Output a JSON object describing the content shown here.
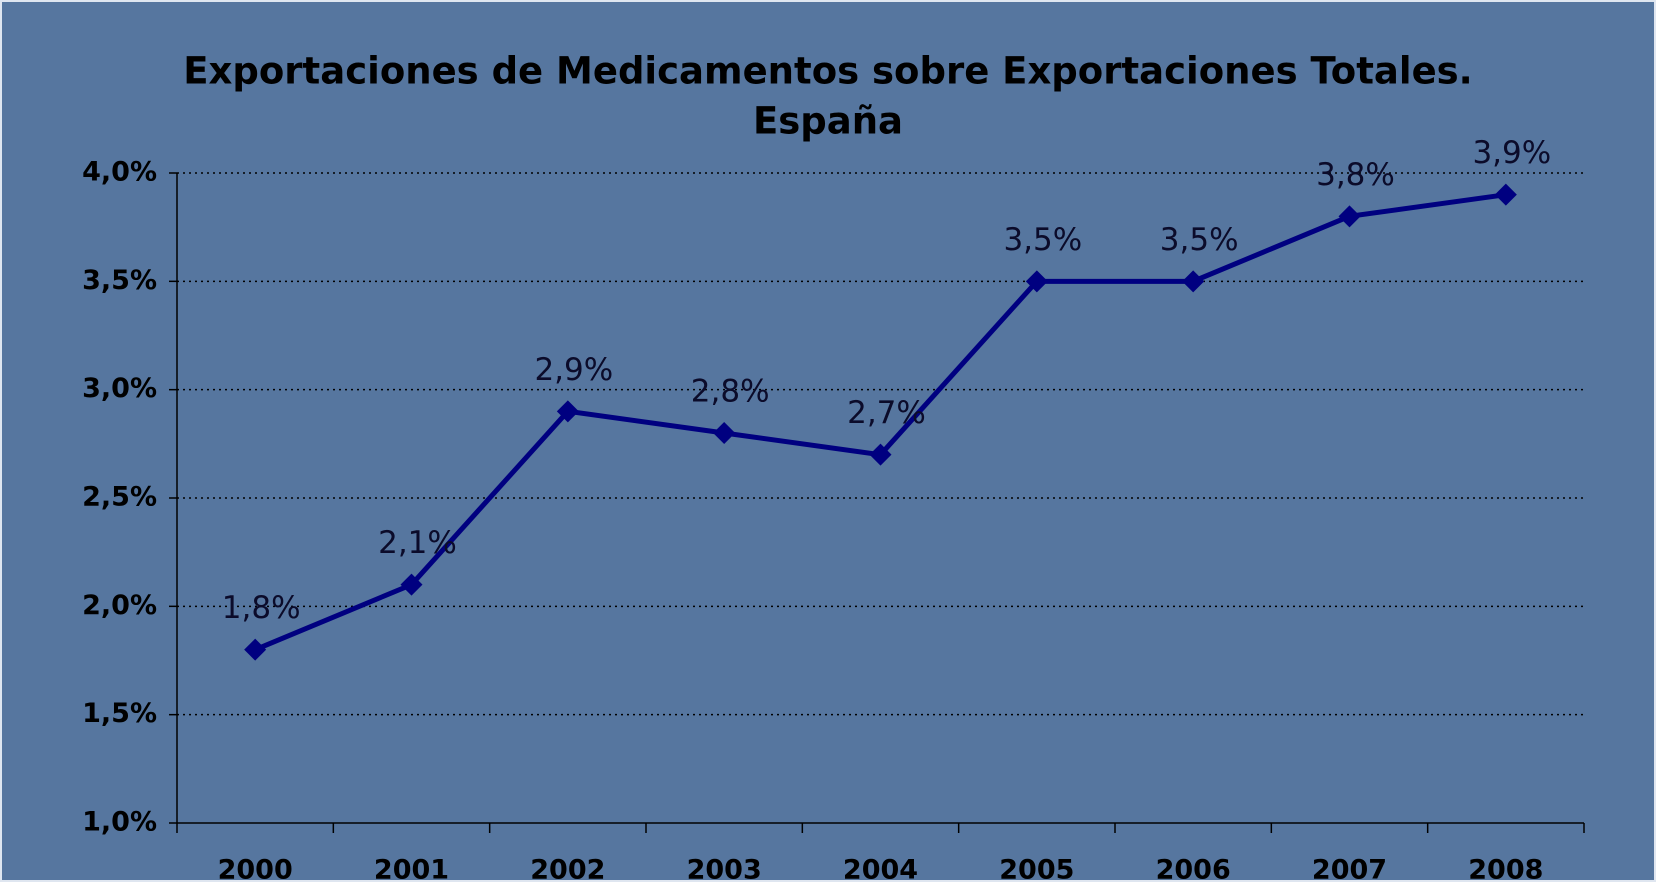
{
  "chart_data": {
    "type": "line",
    "title": [
      "Exportaciones de Medicamentos sobre Exportaciones Totales.",
      "España"
    ],
    "categories": [
      "2000",
      "2001",
      "2002",
      "2003",
      "2004",
      "2005",
      "2006",
      "2007",
      "2008"
    ],
    "series": [
      {
        "color": "#000080",
        "values": [
          1.8,
          2.1,
          2.9,
          2.8,
          2.7,
          3.5,
          3.5,
          3.8,
          3.9
        ],
        "value_labels": [
          "1,8%",
          "2,1%",
          "2,9%",
          "2,8%",
          "2,7%",
          "3,5%",
          "3,5%",
          "3,8%",
          "3,9%"
        ]
      }
    ],
    "ylim": [
      1.0,
      4.0
    ],
    "yticks": [
      {
        "value": 1.0,
        "label": "1,0%"
      },
      {
        "value": 1.5,
        "label": "1,5%"
      },
      {
        "value": 2.0,
        "label": "2,0%"
      },
      {
        "value": 2.5,
        "label": "2,5%"
      },
      {
        "value": 3.0,
        "label": "3,0%"
      },
      {
        "value": 3.5,
        "label": "3,5%"
      },
      {
        "value": 4.0,
        "label": "4,0%"
      }
    ],
    "grid": true
  }
}
